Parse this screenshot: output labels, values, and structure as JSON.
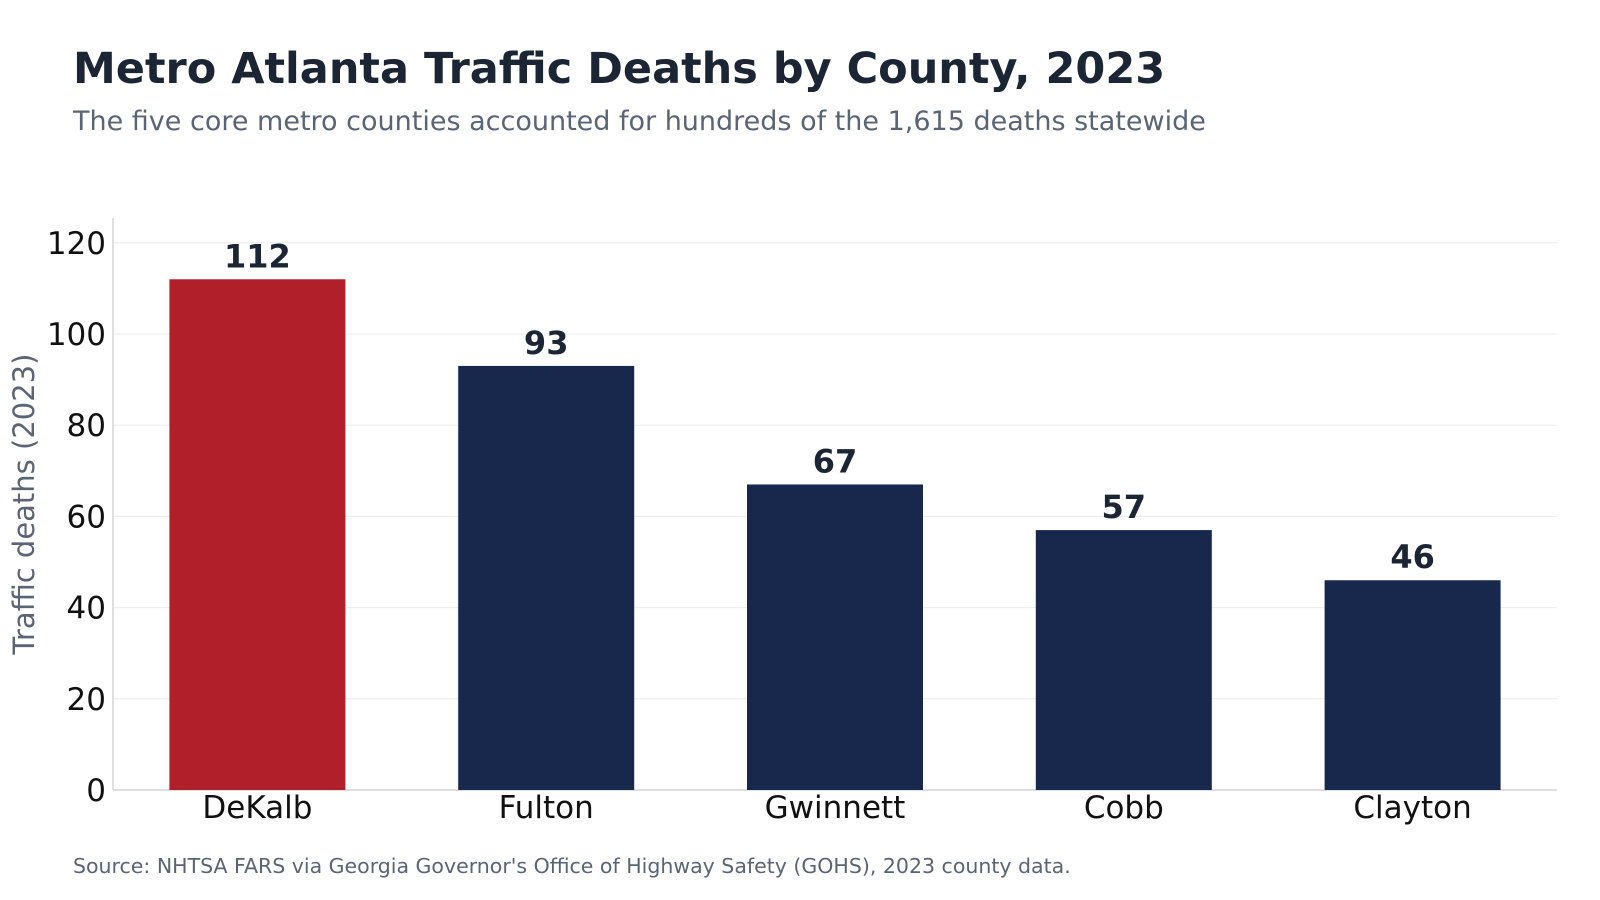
{
  "header": {
    "title": "Metro Atlanta Traffic Deaths by County, 2023",
    "subtitle": "The five core metro counties accounted for hundreds of the 1,615 deaths statewide"
  },
  "footer": {
    "source": "Source: NHTSA FARS via Georgia Governor's Office of Highway Safety (GOHS), 2023 county data."
  },
  "chart_data": {
    "type": "bar",
    "title": "Metro Atlanta Traffic Deaths by County, 2023",
    "subtitle": "The five core metro counties accounted for hundreds of the 1,615 deaths statewide",
    "xlabel": "",
    "ylabel": "Traffic deaths (2023)",
    "categories": [
      "DeKalb",
      "Fulton",
      "Gwinnett",
      "Cobb",
      "Clayton"
    ],
    "values": [
      112,
      93,
      67,
      57,
      46
    ],
    "data_labels": [
      "112",
      "93",
      "67",
      "57",
      "46"
    ],
    "ylim": [
      0,
      125
    ],
    "yticks": [
      0,
      20,
      40,
      60,
      80,
      100,
      120
    ],
    "grid": "horizontal",
    "legend": "none",
    "colors": {
      "highlight": "#b11f2b",
      "bar": "#18284c",
      "grid": "#ebebeb",
      "axis": "#cccccc",
      "label": "#1c2533"
    },
    "highlight_category": "DeKalb"
  }
}
